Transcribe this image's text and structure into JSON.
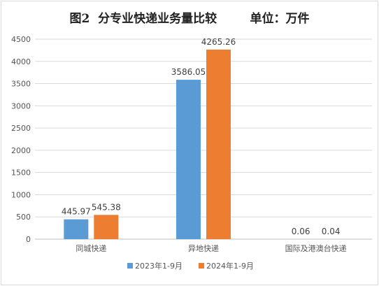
{
  "chart_data": {
    "type": "bar",
    "title": "图2  分专业快递业务量比较        单位：万件",
    "categories": [
      "同城快递",
      "异地快递",
      "国际及港澳台快递"
    ],
    "series": [
      {
        "name": "2023年1-9月",
        "color": "#5b9bd5",
        "values": [
          445.97,
          3586.05,
          0.06
        ],
        "labels": [
          "445.97",
          "3586.05",
          "0.06"
        ]
      },
      {
        "name": "2024年1-9月",
        "color": "#ed7d31",
        "values": [
          545.38,
          4265.26,
          0.04
        ],
        "labels": [
          "545.38",
          "4265.26",
          "0.04"
        ]
      }
    ],
    "y_ticks": [
      "0",
      "500",
      "1000",
      "1500",
      "2000",
      "2500",
      "3000",
      "3500",
      "4000",
      "4500"
    ],
    "ylim": [
      0,
      4500
    ],
    "grid": true,
    "legend_position": "bottom"
  }
}
